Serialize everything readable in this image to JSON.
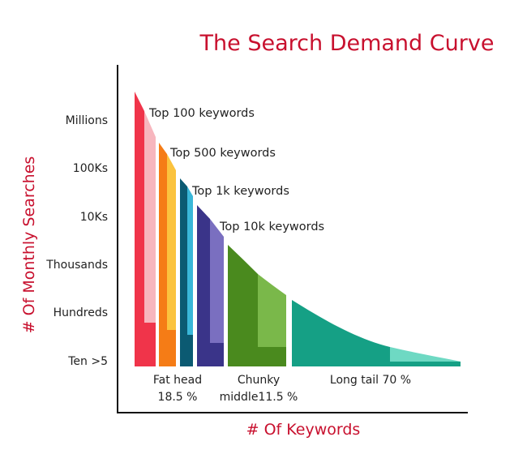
{
  "chart_data": {
    "type": "area",
    "title": "The Search Demand Curve",
    "xlabel": "# Of Keywords",
    "ylabel": "# Of Monthly Searches",
    "y_ticks": [
      "Millions",
      "100Ks",
      "10Ks",
      "Thousands",
      "Hundreds",
      "Ten >5"
    ],
    "grid": false,
    "segments": [
      {
        "label": "Top 100 keywords",
        "color": "#f0344a",
        "light_color": "#f7b6be"
      },
      {
        "label": "Top 500 keywords",
        "color": "#f57c16",
        "light_color": "#fbc33e"
      },
      {
        "label": "Top 1k keywords",
        "color": "#0b5a72",
        "light_color": "#3ab7d8"
      },
      {
        "label": "Top 10k keywords",
        "color": "#3a3489",
        "light_color": "#7a6fc0"
      },
      {
        "label": "",
        "color": "#4a8a1e",
        "light_color": "#7ab84a"
      },
      {
        "label": "",
        "color": "#15a085",
        "light_color": "#6ed9c3"
      }
    ],
    "categories": [
      {
        "line1": "Fat head",
        "line2": "18.5 %",
        "percent": 18.5
      },
      {
        "line1": "Chunky",
        "line2": "middle11.5 %",
        "percent": 11.5
      },
      {
        "line1": "Long tail 70 %",
        "line2": "",
        "percent": 70
      }
    ]
  }
}
